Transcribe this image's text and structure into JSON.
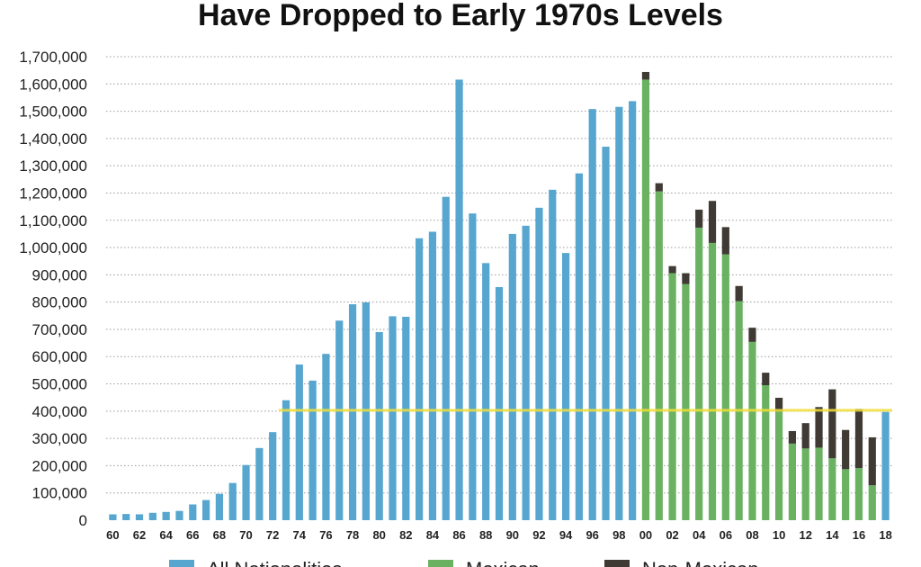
{
  "chart_data": {
    "type": "bar",
    "title": "Have Dropped to Early 1970s Levels",
    "xlabel": "",
    "ylabel": "",
    "ylim": [
      0,
      1700000
    ],
    "yticks": [
      0,
      100000,
      200000,
      300000,
      400000,
      500000,
      600000,
      700000,
      800000,
      900000,
      1000000,
      1100000,
      1200000,
      1300000,
      1400000,
      1500000,
      1600000,
      1700000
    ],
    "ytick_labels": [
      "0",
      "100,000",
      "200,000",
      "300,000",
      "400,000",
      "500,000",
      "600,000",
      "700,000",
      "800,000",
      "900,000",
      "1,000,000",
      "1,100,000",
      "1,200,000",
      "1,300,000",
      "1,400,000",
      "1,500,000",
      "1,600,000",
      "1,700,000"
    ],
    "grid": true,
    "stacked": true,
    "categories": [
      "60",
      "61",
      "62",
      "63",
      "64",
      "65",
      "66",
      "67",
      "68",
      "69",
      "70",
      "71",
      "72",
      "73",
      "74",
      "75",
      "76",
      "77",
      "78",
      "79",
      "80",
      "81",
      "82",
      "83",
      "84",
      "85",
      "86",
      "87",
      "88",
      "89",
      "90",
      "91",
      "92",
      "93",
      "94",
      "95",
      "96",
      "97",
      "98",
      "99",
      "00",
      "01",
      "02",
      "03",
      "04",
      "05",
      "06",
      "07",
      "08",
      "09",
      "10",
      "11",
      "12",
      "13",
      "14",
      "15",
      "16",
      "17",
      "18"
    ],
    "xtick_labels": [
      "60",
      "62",
      "64",
      "66",
      "68",
      "70",
      "72",
      "74",
      "76",
      "78",
      "80",
      "82",
      "84",
      "86",
      "88",
      "90",
      "92",
      "94",
      "96",
      "98",
      "00",
      "02",
      "04",
      "06",
      "08",
      "10",
      "12",
      "14",
      "16",
      "18"
    ],
    "series": [
      {
        "name": "All Nationalities",
        "color": "#56a6cf",
        "values": [
          21500,
          22700,
          21600,
          27100,
          30300,
          34100,
          57800,
          73900,
          96600,
          136500,
          202400,
          264700,
          322900,
          440000,
          571000,
          512000,
          610000,
          732000,
          792000,
          799000,
          690000,
          748000,
          746000,
          1034000,
          1058000,
          1186000,
          1616000,
          1125000,
          943000,
          855000,
          1050000,
          1080000,
          1146000,
          1212000,
          980000,
          1272000,
          1508000,
          1370000,
          1516000,
          1537000,
          0,
          0,
          0,
          0,
          0,
          0,
          0,
          0,
          0,
          0,
          0,
          0,
          0,
          0,
          0,
          0,
          0,
          0,
          397000
        ]
      },
      {
        "name": "Mexican",
        "color": "#6ab262",
        "values": [
          0,
          0,
          0,
          0,
          0,
          0,
          0,
          0,
          0,
          0,
          0,
          0,
          0,
          0,
          0,
          0,
          0,
          0,
          0,
          0,
          0,
          0,
          0,
          0,
          0,
          0,
          0,
          0,
          0,
          0,
          0,
          0,
          0,
          0,
          0,
          0,
          0,
          0,
          0,
          0,
          1616000,
          1206000,
          906000,
          866000,
          1073000,
          1017000,
          975000,
          803000,
          654000,
          495000,
          399000,
          281000,
          263000,
          266000,
          227000,
          187000,
          191000,
          128000,
          0
        ]
      },
      {
        "name": "Non-Mexican",
        "color": "#3f3a34",
        "values": [
          0,
          0,
          0,
          0,
          0,
          0,
          0,
          0,
          0,
          0,
          0,
          0,
          0,
          0,
          0,
          0,
          0,
          0,
          0,
          0,
          0,
          0,
          0,
          0,
          0,
          0,
          0,
          0,
          0,
          0,
          0,
          0,
          0,
          0,
          0,
          0,
          0,
          0,
          0,
          0,
          28000,
          30000,
          26000,
          40000,
          66000,
          154000,
          100000,
          56000,
          52000,
          46000,
          50000,
          46000,
          93000,
          149000,
          253000,
          144000,
          217000,
          176000,
          0
        ]
      }
    ],
    "reference_line": {
      "value": 403000,
      "color": "#f2df3a"
    },
    "legend_position": "bottom"
  }
}
